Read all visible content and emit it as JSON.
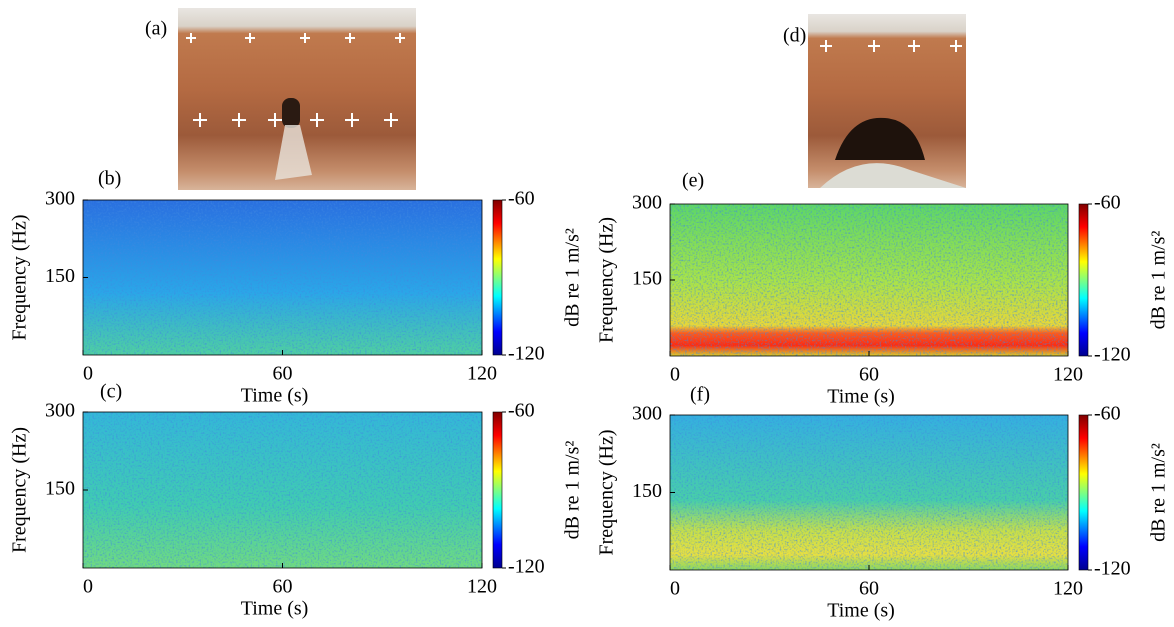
{
  "photos": [
    {
      "label": "(a)"
    },
    {
      "label": "(d)"
    }
  ],
  "chart_data": [
    {
      "type": "heatmap",
      "panel": "(b)",
      "x_label": "Time (s)",
      "y_label": "Frequency (Hz)",
      "colorbar_label": "dB re 1 m/s²",
      "xlim": [
        0,
        120
      ],
      "xticks": [
        0,
        60,
        120
      ],
      "ylim": [
        0,
        300
      ],
      "yticks": [
        150,
        300
      ],
      "clim": [
        -120,
        -60
      ],
      "cticks": [
        -120,
        -60
      ]
    },
    {
      "type": "heatmap",
      "panel": "(c)",
      "x_label": "Time (s)",
      "y_label": "Frequency (Hz)",
      "colorbar_label": "dB re 1 m/s²",
      "xlim": [
        0,
        120
      ],
      "xticks": [
        0,
        60,
        120
      ],
      "ylim": [
        0,
        300
      ],
      "yticks": [
        150,
        300
      ],
      "clim": [
        -120,
        -60
      ],
      "cticks": [
        -120,
        -60
      ]
    },
    {
      "type": "heatmap",
      "panel": "(e)",
      "x_label": "Time (s)",
      "y_label": "Frequency (Hz)",
      "colorbar_label": "dB re 1 m/s²",
      "xlim": [
        0,
        120
      ],
      "xticks": [
        0,
        60,
        120
      ],
      "ylim": [
        0,
        300
      ],
      "yticks": [
        150,
        300
      ],
      "clim": [
        -120,
        -60
      ],
      "cticks": [
        -120,
        -60
      ]
    },
    {
      "type": "heatmap",
      "panel": "(f)",
      "x_label": "Time (s)",
      "y_label": "Frequency (Hz)",
      "colorbar_label": "dB re 1 m/s²",
      "xlim": [
        0,
        120
      ],
      "xticks": [
        0,
        60,
        120
      ],
      "ylim": [
        0,
        300
      ],
      "yticks": [
        150,
        300
      ],
      "clim": [
        -120,
        -60
      ],
      "cticks": [
        -120,
        -60
      ]
    }
  ]
}
